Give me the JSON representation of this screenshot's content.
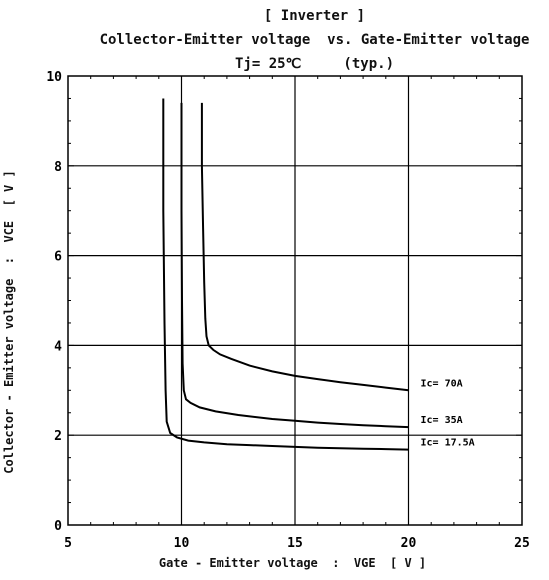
{
  "chart_data": {
    "type": "line",
    "title": "[ Inverter ]",
    "subtitle": "Collector-Emitter voltage  vs. Gate-Emitter voltage",
    "condition": "Tj= 25℃     (typ.)",
    "xlabel": "Gate - Emitter voltage  :  VGE  [ V ]",
    "ylabel": "Collector - Emitter voltage  :  VCE  [ V ]",
    "xlim": [
      5,
      25
    ],
    "ylim": [
      0,
      10
    ],
    "xticks": [
      5,
      10,
      15,
      20,
      25
    ],
    "yticks": [
      0,
      2,
      4,
      6,
      8,
      10
    ],
    "grid": true,
    "series": [
      {
        "name": "Ic= 70A",
        "x": [
          10.9,
          10.9,
          10.95,
          11.0,
          11.05,
          11.1,
          11.2,
          11.4,
          11.7,
          12.2,
          13,
          14,
          15,
          16,
          17,
          18,
          19,
          20
        ],
        "y": [
          9.4,
          8.0,
          6.6,
          5.4,
          4.6,
          4.2,
          4.0,
          3.9,
          3.8,
          3.7,
          3.55,
          3.42,
          3.32,
          3.25,
          3.18,
          3.12,
          3.06,
          3.0
        ]
      },
      {
        "name": "Ic= 35A",
        "x": [
          10.0,
          10.0,
          10.02,
          10.05,
          10.1,
          10.2,
          10.4,
          10.8,
          11.5,
          12.5,
          14,
          15,
          16,
          17,
          18,
          19,
          20
        ],
        "y": [
          9.4,
          7.0,
          5.0,
          3.6,
          3.0,
          2.8,
          2.72,
          2.62,
          2.53,
          2.45,
          2.36,
          2.32,
          2.28,
          2.25,
          2.22,
          2.2,
          2.18
        ]
      },
      {
        "name": "Ic= 17.5A",
        "x": [
          9.2,
          9.2,
          9.25,
          9.3,
          9.35,
          9.5,
          9.8,
          10.3,
          11,
          12,
          13,
          14,
          15,
          16,
          17,
          18,
          19,
          20
        ],
        "y": [
          9.5,
          7.0,
          4.5,
          3.0,
          2.3,
          2.05,
          1.95,
          1.88,
          1.84,
          1.8,
          1.78,
          1.76,
          1.74,
          1.72,
          1.71,
          1.7,
          1.69,
          1.68
        ]
      }
    ]
  }
}
